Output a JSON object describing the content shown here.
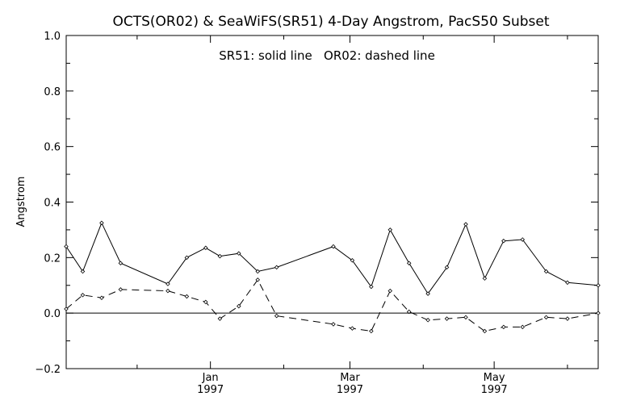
{
  "chart_data": {
    "type": "line",
    "title": "OCTS(OR02) & SeaWiFS(SR51) 4-Day Angstrom, PacS50 Subset",
    "annotation": "SR51: solid line   OR02: dashed line",
    "xlabel": "",
    "ylabel": "Angstrom",
    "ylim": [
      -0.2,
      1.0
    ],
    "xlim": [
      "1996-11-01",
      "1997-06-14"
    ],
    "yticks": [
      -0.2,
      0.0,
      0.2,
      0.4,
      0.6,
      0.8,
      1.0
    ],
    "yticklabels": [
      "−0.2",
      "0.0",
      "0.2",
      "0.4",
      "0.6",
      "0.8",
      "1.0"
    ],
    "xticks": [
      {
        "date": "1997-01-01",
        "line1": "Jan",
        "line2": "1997"
      },
      {
        "date": "1997-03-01",
        "line1": "Mar",
        "line2": "1997"
      },
      {
        "date": "1997-05-01",
        "line1": "May",
        "line2": "1997"
      }
    ],
    "xminor": [
      "1996-12-01",
      "1997-02-01",
      "1997-04-01",
      "1997-06-01"
    ],
    "zero_line": true,
    "grid": false,
    "series": [
      {
        "name": "SR51",
        "style": "solid",
        "x": [
          "1996-11-01",
          "1996-11-08",
          "1996-11-16",
          "1996-11-24",
          "1996-12-14",
          "1996-12-22",
          "1996-12-30",
          "1997-01-05",
          "1997-01-13",
          "1997-01-21",
          "1997-01-29",
          "1997-02-22",
          "1997-03-02",
          "1997-03-10",
          "1997-03-18",
          "1997-03-26",
          "1997-04-03",
          "1997-04-11",
          "1997-04-19",
          "1997-04-27",
          "1997-05-05",
          "1997-05-13",
          "1997-05-23",
          "1997-06-01",
          "1997-06-14"
        ],
        "y": [
          0.24,
          0.15,
          0.325,
          0.18,
          0.105,
          0.2,
          0.235,
          0.205,
          0.215,
          0.15,
          0.165,
          0.24,
          0.19,
          0.095,
          0.3,
          0.18,
          0.07,
          0.165,
          0.32,
          0.125,
          0.26,
          0.265,
          0.15,
          0.11,
          0.1
        ]
      },
      {
        "name": "OR02",
        "style": "dashed",
        "x": [
          "1996-11-01",
          "1996-11-08",
          "1996-11-16",
          "1996-11-24",
          "1996-12-14",
          "1996-12-22",
          "1996-12-30",
          "1997-01-05",
          "1997-01-13",
          "1997-01-21",
          "1997-01-29",
          "1997-02-22",
          "1997-03-02",
          "1997-03-10",
          "1997-03-18",
          "1997-03-26",
          "1997-04-03",
          "1997-04-11",
          "1997-04-19",
          "1997-04-27",
          "1997-05-05",
          "1997-05-13",
          "1997-05-23",
          "1997-06-01",
          "1997-06-14"
        ],
        "y": [
          0.015,
          0.065,
          0.055,
          0.085,
          0.08,
          0.06,
          0.04,
          -0.02,
          0.025,
          0.12,
          -0.01,
          -0.04,
          -0.055,
          -0.065,
          0.08,
          0.005,
          -0.025,
          -0.02,
          -0.015,
          -0.065,
          -0.05,
          -0.05,
          -0.015,
          -0.02,
          0.0
        ]
      }
    ]
  }
}
